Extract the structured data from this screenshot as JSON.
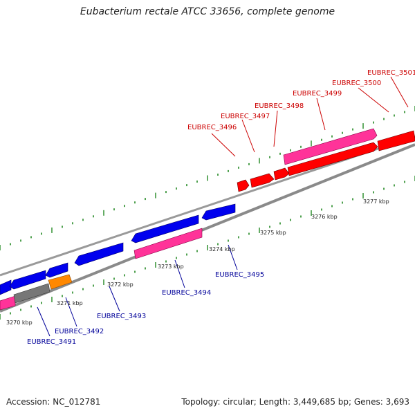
{
  "title": "Eubacterium rectale ATCC 33656, complete genome",
  "footer": {
    "accession": "Accession: NC_012781",
    "summary": "Topology: circular; Length: 3,449,685 bp; Genes: 3,693"
  },
  "colors": {
    "backbone": "#8a8a8a",
    "forward_gene": "#ff0000",
    "reverse_gene": "#0000ee",
    "rna_gene": "#ff3399",
    "misc_orange": "#ff8800",
    "misc_gray": "#777777",
    "tick_green": "#228822",
    "label_red": "#cc0000",
    "label_blue": "#000099"
  },
  "scale_labels": [
    "3270 kbp",
    "3271 kbp",
    "3272 kbp",
    "3273 kbp",
    "3274 kbp",
    "3275 kbp",
    "3276 kbp",
    "3277 kbp"
  ],
  "upper_gene_labels": [
    "EUBREC_3496",
    "EUBREC_3497",
    "EUBREC_3498",
    "EUBREC_3499",
    "EUBREC_3500",
    "EUBREC_3501"
  ],
  "lower_gene_labels": [
    "EUBREC_3491",
    "EUBREC_3492",
    "EUBREC_3493",
    "EUBREC_3494",
    "EUBREC_3495"
  ]
}
